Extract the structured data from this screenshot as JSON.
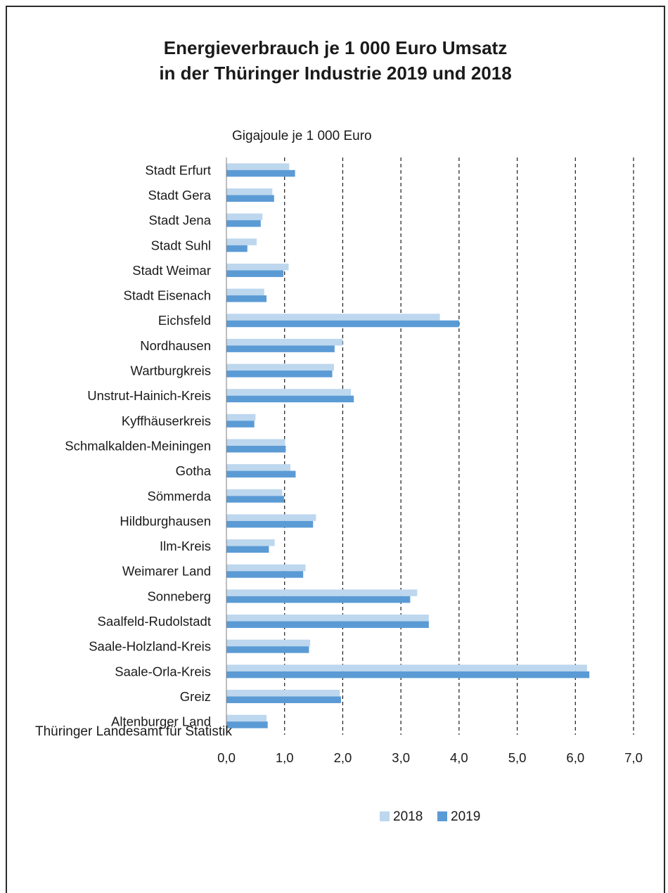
{
  "chart_data": {
    "type": "bar",
    "orientation": "horizontal",
    "title": "Energieverbrauch je 1 000 Euro Umsatz",
    "subtitle": "in der Thüringer Industrie 2019 und 2018",
    "unit_label": "Gigajoule je 1 000 Euro",
    "categories": [
      "Stadt Erfurt",
      "Stadt Gera",
      "Stadt Jena",
      "Stadt Suhl",
      "Stadt Weimar",
      "Stadt Eisenach",
      "Eichsfeld",
      "Nordhausen",
      "Wartburgkreis",
      "Unstrut-Hainich-Kreis",
      "Kyffhäuserkreis",
      "Schmalkalden-Meiningen",
      "Gotha",
      "Sömmerda",
      "Hildburghausen",
      "Ilm-Kreis",
      "Weimarer Land",
      "Sonneberg",
      "Saalfeld-Rudolstadt",
      "Saale-Holzland-Kreis",
      "Saale-Orla-Kreis",
      "Greiz",
      "Altenburger Land"
    ],
    "series": [
      {
        "name": "2018",
        "color": "#bdd7ee",
        "values": [
          1.08,
          0.79,
          0.62,
          0.52,
          1.07,
          0.65,
          3.67,
          2.0,
          1.85,
          2.14,
          0.5,
          1.01,
          1.1,
          0.96,
          1.54,
          0.83,
          1.36,
          3.28,
          3.48,
          1.44,
          6.2,
          1.95,
          0.69
        ]
      },
      {
        "name": "2019",
        "color": "#5b9bd5",
        "values": [
          1.18,
          0.82,
          0.59,
          0.36,
          0.98,
          0.69,
          4.0,
          1.86,
          1.82,
          2.19,
          0.48,
          1.02,
          1.19,
          0.99,
          1.49,
          0.73,
          1.32,
          3.16,
          3.48,
          1.42,
          6.24,
          1.97,
          0.71
        ]
      }
    ],
    "xlim": [
      0,
      7
    ],
    "xticks": [
      0,
      1,
      2,
      3,
      4,
      5,
      6,
      7
    ],
    "xtick_labels": [
      "0,0",
      "1,0",
      "2,0",
      "3,0",
      "4,0",
      "5,0",
      "6,0",
      "7,0"
    ],
    "grid": "vertical dashed",
    "legend": "bottom-center"
  },
  "source": "Thüringer Landesamt für Statistik"
}
